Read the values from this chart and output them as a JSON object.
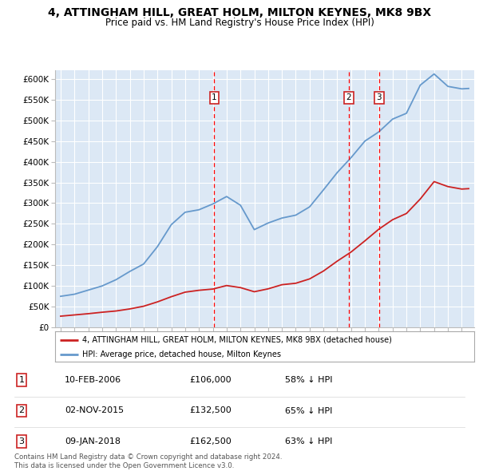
{
  "title": "4, ATTINGHAM HILL, GREAT HOLM, MILTON KEYNES, MK8 9BX",
  "subtitle": "Price paid vs. HM Land Registry's House Price Index (HPI)",
  "title_fontsize": 10,
  "subtitle_fontsize": 8.5,
  "bg_color": "#dce8f5",
  "grid_color": "#ffffff",
  "hpi_color": "#6699cc",
  "price_color": "#cc2222",
  "ylim": [
    0,
    620000
  ],
  "yticks": [
    0,
    50000,
    100000,
    150000,
    200000,
    250000,
    300000,
    350000,
    400000,
    450000,
    500000,
    550000,
    600000
  ],
  "ytick_labels": [
    "£0",
    "£50K",
    "£100K",
    "£150K",
    "£200K",
    "£250K",
    "£300K",
    "£350K",
    "£400K",
    "£450K",
    "£500K",
    "£550K",
    "£600K"
  ],
  "sales": [
    {
      "date_num": 2006.11,
      "price": 106000,
      "label": "1"
    },
    {
      "date_num": 2015.84,
      "price": 132500,
      "label": "2"
    },
    {
      "date_num": 2018.03,
      "price": 162500,
      "label": "3"
    }
  ],
  "legend_entries": [
    "4, ATTINGHAM HILL, GREAT HOLM, MILTON KEYNES, MK8 9BX (detached house)",
    "HPI: Average price, detached house, Milton Keynes"
  ],
  "table_rows": [
    [
      "1",
      "10-FEB-2006",
      "£106,000",
      "58% ↓ HPI"
    ],
    [
      "2",
      "02-NOV-2015",
      "£132,500",
      "65% ↓ HPI"
    ],
    [
      "3",
      "09-JAN-2018",
      "£162,500",
      "63% ↓ HPI"
    ]
  ],
  "footer": "Contains HM Land Registry data © Crown copyright and database right 2024.\nThis data is licensed under the Open Government Licence v3.0.",
  "hpi_years": [
    1995,
    1996,
    1997,
    1998,
    1999,
    2000,
    2001,
    2002,
    2003,
    2004,
    2005,
    2006,
    2007,
    2008,
    2009,
    2010,
    2011,
    2012,
    2013,
    2014,
    2015,
    2016,
    2017,
    2018,
    2019,
    2020,
    2021,
    2022,
    2023,
    2024,
    2024.5
  ],
  "hpi_vals": [
    75000,
    80000,
    90000,
    100000,
    115000,
    135000,
    153000,
    195000,
    248000,
    278000,
    284000,
    298000,
    316000,
    295000,
    236000,
    252000,
    264000,
    271000,
    291000,
    332000,
    374000,
    410000,
    450000,
    472000,
    503000,
    517000,
    585000,
    612000,
    582000,
    576000,
    577000
  ],
  "price_years": [
    1995,
    1996,
    1997,
    1998,
    1999,
    2000,
    2001,
    2002,
    2003,
    2004,
    2005,
    2006,
    2007,
    2008,
    2009,
    2010,
    2011,
    2012,
    2013,
    2014,
    2015,
    2016,
    2017,
    2018,
    2019,
    2020,
    2021,
    2022,
    2023,
    2024,
    2024.5
  ],
  "price_vals": [
    27000,
    30000,
    33000,
    36500,
    39500,
    44500,
    51000,
    61500,
    74000,
    85000,
    89500,
    92500,
    101000,
    96000,
    86000,
    93000,
    103000,
    106500,
    117000,
    136000,
    160000,
    182000,
    209000,
    237000,
    260000,
    275000,
    310000,
    352000,
    340000,
    334000,
    335000
  ]
}
